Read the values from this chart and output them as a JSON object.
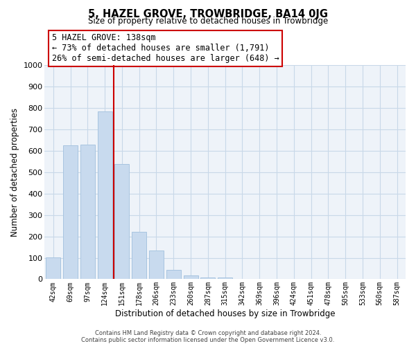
{
  "title": "5, HAZEL GROVE, TROWBRIDGE, BA14 0JG",
  "subtitle": "Size of property relative to detached houses in Trowbridge",
  "xlabel": "Distribution of detached houses by size in Trowbridge",
  "ylabel": "Number of detached properties",
  "bar_labels": [
    "42sqm",
    "69sqm",
    "97sqm",
    "124sqm",
    "151sqm",
    "178sqm",
    "206sqm",
    "233sqm",
    "260sqm",
    "287sqm",
    "315sqm",
    "342sqm",
    "369sqm",
    "396sqm",
    "424sqm",
    "451sqm",
    "478sqm",
    "505sqm",
    "533sqm",
    "560sqm",
    "587sqm"
  ],
  "bar_values": [
    103,
    625,
    630,
    783,
    540,
    220,
    135,
    45,
    18,
    8,
    8,
    0,
    0,
    0,
    0,
    0,
    0,
    0,
    0,
    0,
    0
  ],
  "bar_color": "#c8daee",
  "bar_edge_color": "#a8c4e0",
  "vline_color": "#cc0000",
  "ylim": [
    0,
    1000
  ],
  "yticks": [
    0,
    100,
    200,
    300,
    400,
    500,
    600,
    700,
    800,
    900,
    1000
  ],
  "annotation_line1": "5 HAZEL GROVE: 138sqm",
  "annotation_line2": "← 73% of detached houses are smaller (1,791)",
  "annotation_line3": "26% of semi-detached houses are larger (648) →",
  "footer_text": "Contains HM Land Registry data © Crown copyright and database right 2024.\nContains public sector information licensed under the Open Government Licence v3.0.",
  "background_color": "#ffffff",
  "plot_bg_color": "#eef3f9",
  "grid_color": "#c8d8e8"
}
